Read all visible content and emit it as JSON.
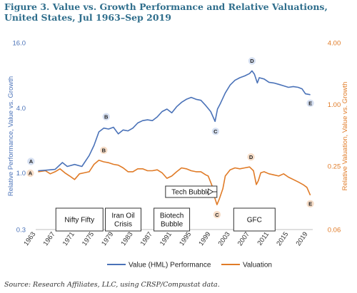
{
  "title": "Figure 3. Value vs. Growth Performance and Relative Valuations, United States, Jul 1963–Sep 2019",
  "source": "Source: Research Affiliates, LLC, using CRSP/Compustat data.",
  "chart_data": {
    "type": "line",
    "x_ticks": [
      "1963",
      "1967",
      "1971",
      "1975",
      "1979",
      "1983",
      "1987",
      "1991",
      "1995",
      "1999",
      "2003",
      "2007",
      "2011",
      "2015",
      "2019"
    ],
    "y_left": {
      "label": "Relative Performance, Value vs. Growth",
      "scale": "log",
      "ticks": [
        "16.0",
        "4.0",
        "1.0",
        "0.3"
      ],
      "tick_values": [
        16,
        4,
        1,
        0.3
      ],
      "range": [
        0.3,
        16
      ]
    },
    "y_right": {
      "label": "Relative Valuation, Value vs. Growth",
      "scale": "log",
      "ticks": [
        "4.00",
        "1.00",
        "0.25",
        "0.06"
      ],
      "tick_values": [
        4,
        1,
        0.25,
        0.06
      ],
      "range": [
        0.06,
        4
      ]
    },
    "series": [
      {
        "name": "Value (HML) Performance",
        "axis": "left",
        "color": "#4a72b8",
        "points": [
          [
            1963.5,
            1.05
          ],
          [
            1965,
            1.06
          ],
          [
            1967,
            1.08
          ],
          [
            1968.5,
            1.25
          ],
          [
            1969.5,
            1.15
          ],
          [
            1971,
            1.2
          ],
          [
            1972.5,
            1.15
          ],
          [
            1974,
            1.45
          ],
          [
            1975,
            1.8
          ],
          [
            1976,
            2.4
          ],
          [
            1977,
            2.6
          ],
          [
            1978,
            2.55
          ],
          [
            1979,
            2.65
          ],
          [
            1980,
            2.3
          ],
          [
            1981,
            2.5
          ],
          [
            1982,
            2.45
          ],
          [
            1983,
            2.6
          ],
          [
            1984,
            2.9
          ],
          [
            1985,
            3.05
          ],
          [
            1986,
            3.1
          ],
          [
            1987,
            3.05
          ],
          [
            1988,
            3.3
          ],
          [
            1989,
            3.7
          ],
          [
            1990,
            3.9
          ],
          [
            1991,
            3.6
          ],
          [
            1992,
            4.1
          ],
          [
            1993,
            4.5
          ],
          [
            1994,
            4.8
          ],
          [
            1995,
            5.0
          ],
          [
            1996,
            4.8
          ],
          [
            1997,
            4.7
          ],
          [
            1998,
            4.2
          ],
          [
            1999,
            3.7
          ],
          [
            1999.9,
            3.0
          ],
          [
            2000.4,
            3.9
          ],
          [
            2001,
            4.4
          ],
          [
            2002,
            5.5
          ],
          [
            2003,
            6.5
          ],
          [
            2004,
            7.2
          ],
          [
            2005,
            7.6
          ],
          [
            2006,
            7.9
          ],
          [
            2007,
            8.3
          ],
          [
            2007.5,
            8.8
          ],
          [
            2008,
            8.2
          ],
          [
            2008.6,
            6.8
          ],
          [
            2009,
            7.6
          ],
          [
            2010,
            7.4
          ],
          [
            2011,
            6.9
          ],
          [
            2012,
            6.8
          ],
          [
            2013,
            6.6
          ],
          [
            2014,
            6.4
          ],
          [
            2015,
            6.2
          ],
          [
            2016,
            6.3
          ],
          [
            2017,
            6.2
          ],
          [
            2017.8,
            6.0
          ],
          [
            2018.5,
            5.4
          ],
          [
            2019.5,
            5.3
          ]
        ]
      },
      {
        "name": "Valuation",
        "axis": "right",
        "color": "#e07b27",
        "points": [
          [
            1963.5,
            0.22
          ],
          [
            1965,
            0.225
          ],
          [
            1966,
            0.21
          ],
          [
            1967,
            0.22
          ],
          [
            1968,
            0.235
          ],
          [
            1969,
            0.215
          ],
          [
            1970,
            0.2
          ],
          [
            1971,
            0.185
          ],
          [
            1972,
            0.21
          ],
          [
            1973,
            0.215
          ],
          [
            1974,
            0.22
          ],
          [
            1975,
            0.26
          ],
          [
            1976,
            0.285
          ],
          [
            1977,
            0.275
          ],
          [
            1978,
            0.27
          ],
          [
            1979,
            0.26
          ],
          [
            1980,
            0.255
          ],
          [
            1981,
            0.24
          ],
          [
            1982,
            0.22
          ],
          [
            1983,
            0.22
          ],
          [
            1984,
            0.235
          ],
          [
            1985,
            0.235
          ],
          [
            1986,
            0.225
          ],
          [
            1987,
            0.225
          ],
          [
            1988,
            0.23
          ],
          [
            1989,
            0.215
          ],
          [
            1990,
            0.19
          ],
          [
            1991,
            0.2
          ],
          [
            1992,
            0.22
          ],
          [
            1993,
            0.24
          ],
          [
            1994,
            0.235
          ],
          [
            1995,
            0.225
          ],
          [
            1996,
            0.22
          ],
          [
            1997,
            0.22
          ],
          [
            1998,
            0.205
          ],
          [
            1998.5,
            0.2
          ],
          [
            1999.3,
            0.16
          ],
          [
            1999.9,
            0.12
          ],
          [
            2000.3,
            0.105
          ],
          [
            2000.8,
            0.12
          ],
          [
            2001.5,
            0.15
          ],
          [
            2002,
            0.2
          ],
          [
            2003,
            0.23
          ],
          [
            2004,
            0.24
          ],
          [
            2005,
            0.235
          ],
          [
            2006,
            0.24
          ],
          [
            2007,
            0.245
          ],
          [
            2007.8,
            0.225
          ],
          [
            2008.4,
            0.165
          ],
          [
            2008.8,
            0.18
          ],
          [
            2009.3,
            0.215
          ],
          [
            2010,
            0.22
          ],
          [
            2011,
            0.21
          ],
          [
            2012,
            0.205
          ],
          [
            2013,
            0.2
          ],
          [
            2014,
            0.21
          ],
          [
            2015,
            0.195
          ],
          [
            2016,
            0.185
          ],
          [
            2017,
            0.175
          ],
          [
            2018,
            0.165
          ],
          [
            2018.8,
            0.155
          ],
          [
            2019.5,
            0.13
          ]
        ]
      }
    ],
    "point_labels": [
      {
        "series": "Value (HML) Performance",
        "label": "A",
        "x": 1963.5,
        "y": 1.05
      },
      {
        "series": "Value (HML) Performance",
        "label": "B",
        "x": 1977.5,
        "y": 2.6
      },
      {
        "series": "Value (HML) Performance",
        "label": "C",
        "x": 2000,
        "y": 3.0
      },
      {
        "series": "Value (HML) Performance",
        "label": "D",
        "x": 2007.5,
        "y": 8.8
      },
      {
        "series": "Value (HML) Performance",
        "label": "E",
        "x": 2019.5,
        "y": 5.3
      },
      {
        "series": "Valuation",
        "label": "A",
        "x": 1963.5,
        "y": 0.22
      },
      {
        "series": "Valuation",
        "label": "B",
        "x": 1977,
        "y": 0.285
      },
      {
        "series": "Valuation",
        "label": "C",
        "x": 2000.3,
        "y": 0.105
      },
      {
        "series": "Valuation",
        "label": "D",
        "x": 2007.3,
        "y": 0.245
      },
      {
        "series": "Valuation",
        "label": "E",
        "x": 2019.5,
        "y": 0.13
      }
    ],
    "annotations": [
      {
        "lines": [
          "Nifty Fifty"
        ],
        "x": 1972
      },
      {
        "lines": [
          "Iran Oil",
          "Crisis"
        ],
        "x": 1981
      },
      {
        "lines": [
          "Biotech",
          "Bubble"
        ],
        "x": 1991
      },
      {
        "lines": [
          "Tech Bubble"
        ],
        "x": 1995,
        "arrow_to": 1999.8
      },
      {
        "lines": [
          "GFC"
        ],
        "x": 2008
      }
    ],
    "legend_position": "bottom",
    "grid": false
  }
}
